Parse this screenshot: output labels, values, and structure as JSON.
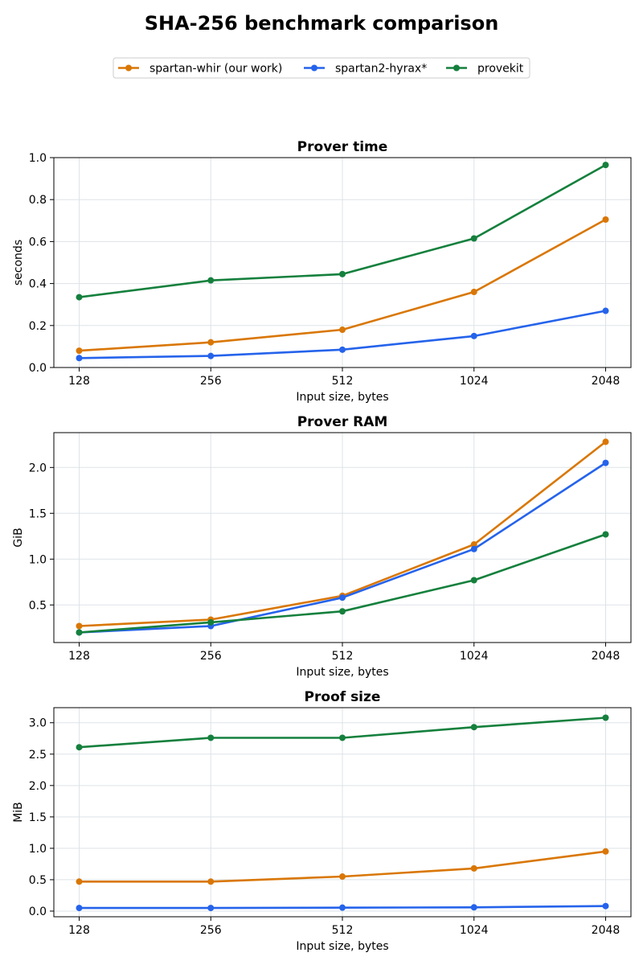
{
  "figure": {
    "title": "SHA-256 benchmark comparison"
  },
  "legend": {
    "placement": "top-center",
    "entries": [
      {
        "name": "spartan-whir (our work)",
        "color": "#D97706"
      },
      {
        "name": "spartan2-hyrax*",
        "color": "#2563EB"
      },
      {
        "name": "provekit",
        "color": "#15803D"
      }
    ]
  },
  "chart_data": [
    {
      "type": "line",
      "title": "Prover time",
      "xlabel": "Input size, bytes",
      "ylabel": "seconds",
      "categories": [
        "128",
        "256",
        "512",
        "1024",
        "2048"
      ],
      "ylim": [
        0.0,
        1.0
      ],
      "yticks": [
        "0.0",
        "0.2",
        "0.4",
        "0.6",
        "0.8",
        "1.0"
      ],
      "grid": true,
      "series": [
        {
          "name": "spartan-whir (our work)",
          "color": "#D97706",
          "values": [
            0.08,
            0.12,
            0.18,
            0.36,
            0.705
          ]
        },
        {
          "name": "spartan2-hyrax*",
          "color": "#2563EB",
          "values": [
            0.045,
            0.055,
            0.085,
            0.15,
            0.27
          ]
        },
        {
          "name": "provekit",
          "color": "#15803D",
          "values": [
            0.335,
            0.415,
            0.445,
            0.615,
            0.965
          ]
        }
      ]
    },
    {
      "type": "line",
      "title": "Prover RAM",
      "xlabel": "Input size, bytes",
      "ylabel": "GiB",
      "categories": [
        "128",
        "256",
        "512",
        "1024",
        "2048"
      ],
      "ylim": [
        0.09,
        2.38
      ],
      "yticks": [
        "0.5",
        "1.0",
        "1.5",
        "2.0"
      ],
      "grid": true,
      "series": [
        {
          "name": "spartan-whir (our work)",
          "color": "#D97706",
          "values": [
            0.27,
            0.34,
            0.6,
            1.16,
            2.28
          ]
        },
        {
          "name": "spartan2-hyrax*",
          "color": "#2563EB",
          "values": [
            0.2,
            0.27,
            0.58,
            1.11,
            2.05
          ]
        },
        {
          "name": "provekit",
          "color": "#15803D",
          "values": [
            0.2,
            0.31,
            0.43,
            0.77,
            1.27
          ]
        }
      ]
    },
    {
      "type": "line",
      "title": "Proof size",
      "xlabel": "Input size, bytes",
      "ylabel": "MiB",
      "categories": [
        "128",
        "256",
        "512",
        "1024",
        "2048"
      ],
      "ylim": [
        -0.09,
        3.24
      ],
      "yticks": [
        "0.0",
        "0.5",
        "1.0",
        "1.5",
        "2.0",
        "2.5",
        "3.0"
      ],
      "grid": true,
      "series": [
        {
          "name": "spartan-whir (our work)",
          "color": "#D97706",
          "values": [
            0.47,
            0.47,
            0.55,
            0.68,
            0.95
          ]
        },
        {
          "name": "spartan2-hyrax*",
          "color": "#2563EB",
          "values": [
            0.05,
            0.05,
            0.055,
            0.06,
            0.08
          ]
        },
        {
          "name": "provekit",
          "color": "#15803D",
          "values": [
            2.61,
            2.76,
            2.76,
            2.93,
            3.08
          ]
        }
      ]
    }
  ]
}
